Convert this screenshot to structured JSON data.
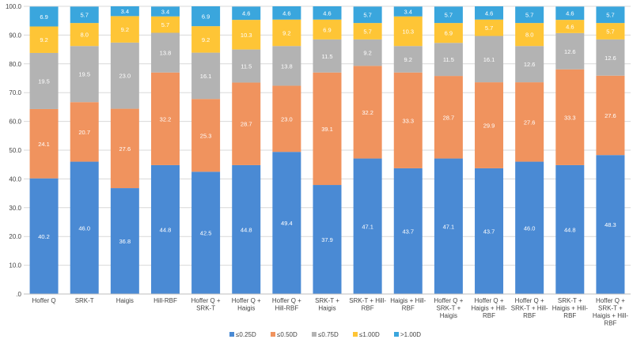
{
  "chart_data": {
    "type": "bar",
    "stacked": true,
    "title": "",
    "xlabel": "",
    "ylabel": "",
    "ylim": [
      0,
      100
    ],
    "yticks": [
      ".0",
      "10.0",
      "20.0",
      "30.0",
      "40.0",
      "50.0",
      "60.0",
      "70.0",
      "80.0",
      "90.0",
      "100.0"
    ],
    "categories": [
      [
        "Hoffer Q"
      ],
      [
        "SRK-T"
      ],
      [
        "Haigis"
      ],
      [
        "Hill-RBF"
      ],
      [
        "Hoffer Q +",
        "SRK-T"
      ],
      [
        "Hoffer Q +",
        "Haigis"
      ],
      [
        "Hoffer Q +",
        "Hill-RBF"
      ],
      [
        "SRK-T +",
        "Haigis"
      ],
      [
        "SRK-T + Hill-",
        "RBF"
      ],
      [
        "Haigis + Hill-",
        "RBF"
      ],
      [
        "Hoffer Q +",
        "SRK-T +",
        "Haigis"
      ],
      [
        "Hoffer Q +",
        "Haigis + Hill-",
        "RBF"
      ],
      [
        "Hoffer Q +",
        "SRK-T + Hill-",
        "RBF"
      ],
      [
        "SRK-T +",
        "Haigis + Hill-",
        "RBF"
      ],
      [
        "Hoffer Q +",
        "SRK-T +",
        "Haigis + Hill-",
        "RBF"
      ]
    ],
    "series": [
      {
        "name": "≤0.25D",
        "color": "#4a8ad4",
        "values": [
          40.2,
          46.0,
          36.8,
          44.8,
          42.5,
          44.8,
          49.4,
          37.9,
          47.1,
          43.7,
          47.1,
          43.7,
          46.0,
          44.8,
          48.3
        ]
      },
      {
        "name": "≤0.50D",
        "color": "#f0935e",
        "values": [
          24.1,
          20.7,
          27.6,
          32.2,
          25.3,
          28.7,
          23.0,
          39.1,
          32.2,
          33.3,
          28.7,
          29.9,
          27.6,
          33.3,
          27.6
        ]
      },
      {
        "name": "≤0.75D",
        "color": "#b3b3b3",
        "values": [
          19.5,
          19.5,
          23.0,
          13.8,
          16.1,
          11.5,
          13.8,
          11.5,
          9.2,
          9.2,
          11.5,
          16.1,
          12.6,
          12.6,
          12.6
        ]
      },
      {
        "name": "≤1.00D",
        "color": "#fec536",
        "values": [
          9.2,
          8.0,
          9.2,
          5.7,
          9.2,
          10.3,
          9.2,
          6.9,
          5.7,
          10.3,
          6.9,
          5.7,
          8.0,
          4.6,
          5.7
        ]
      },
      {
        "name": ">1.00D",
        "color": "#3aa6dd",
        "values": [
          6.9,
          5.7,
          3.4,
          3.4,
          6.9,
          4.6,
          4.6,
          4.6,
          5.7,
          3.4,
          5.7,
          4.6,
          5.7,
          4.6,
          5.7
        ]
      }
    ],
    "legend_position": "bottom",
    "grid": true
  }
}
